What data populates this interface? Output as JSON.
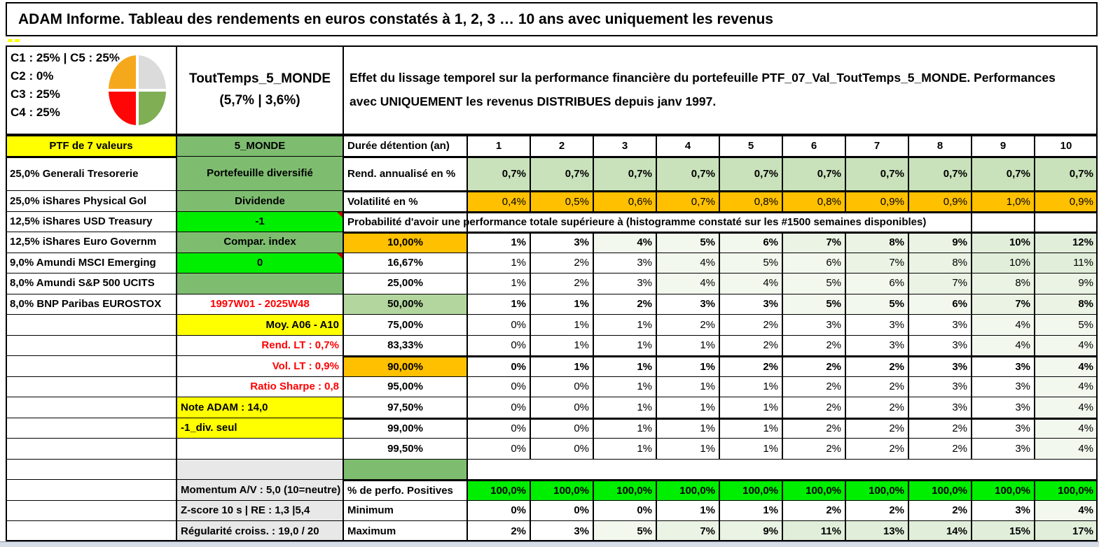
{
  "title": "ADAM Informe. Tableau des rendements en euros constatés à 1, 2, 3 … 10 ans avec uniquement les revenus",
  "description": "Effet du lissage temporel sur la performance financière du portefeuille PTF_07_Val_ToutTemps_5_MONDE. Performances avec UNIQUEMENT les revenus DISTRIBUES depuis janv 1997.",
  "portfolio_name": {
    "line1": "ToutTemps_5_MONDE",
    "line2": "(5,7% | 3,6%)"
  },
  "allocation": {
    "lines": [
      "C1 : 25% | C5 : 25%",
      "C2 : 0%",
      "C3 : 25%",
      "C4 : 25%"
    ]
  },
  "chart_data": {
    "type": "pie",
    "title": "Répartition du portefeuille C1-C5",
    "labels": [
      "C1",
      "C2",
      "C3",
      "C4",
      "C5"
    ],
    "values": [
      25,
      0,
      25,
      25,
      25
    ],
    "quadrant_colors": {
      "top_left": "#F6A81C",
      "top_right": "#DBDBDB",
      "bottom_left": "#FF0606",
      "bottom_right": "#7FAE54"
    }
  },
  "left_column": {
    "header": "PTF de 7 valeurs",
    "holdings": [
      "25,0% Generali Tresorerie",
      "25,0% iShares Physical Gol",
      "12,5% iShares USD Treasury",
      "12,5% iShares Euro Governm",
      "9,0% Amundi MSCI Emerging",
      "8,0% Amundi S&P 500 UCITS",
      "8,0% BNP Paribas EUROSTOX"
    ]
  },
  "middle_column": {
    "rows": [
      {
        "text": "5_MONDE",
        "bg": "green",
        "align": "center"
      },
      {
        "text": "Portefeuille diversifié",
        "bg": "green",
        "align": "center"
      },
      {
        "text": "Dividende",
        "bg": "green",
        "align": "center"
      },
      {
        "text": "-1",
        "bg": "bright_green",
        "align": "center",
        "marker": true
      },
      {
        "text": "Compar. index",
        "bg": "green",
        "align": "center"
      },
      {
        "text": "0",
        "bg": "bright_green",
        "align": "center",
        "marker": true
      },
      {
        "text": "",
        "bg": "green"
      },
      {
        "text": "1997W01 - 2025W48",
        "bg": "white",
        "color": "red",
        "align": "center"
      },
      {
        "text": "Moy. A06 - A10",
        "bg": "yellow",
        "align": "right"
      },
      {
        "text": "Rend. LT : 0,7%",
        "bg": "white",
        "color": "red",
        "align": "right"
      },
      {
        "text": "Vol. LT : 0,9%",
        "bg": "white",
        "color": "red",
        "align": "right"
      },
      {
        "text": "Ratio Sharpe : 0,8",
        "bg": "white",
        "color": "red",
        "align": "right"
      },
      {
        "text": "Note ADAM : 14,0",
        "bg": "yellow",
        "align": "left"
      },
      {
        "text": "-1_div. seul",
        "bg": "yellow",
        "align": "left"
      },
      {
        "text": "",
        "bg": "white"
      },
      {
        "text": "",
        "bg": "gray"
      },
      {
        "text": "Momentum A/V : 5,0 (10=neutre)",
        "bg": "gray",
        "align": "left"
      },
      {
        "text": "Z-score 10 s | RE : 1,3 |5,4",
        "bg": "gray",
        "align": "left"
      },
      {
        "text": "Régularité croiss. : 19,0 / 20",
        "bg": "gray",
        "align": "left"
      }
    ]
  },
  "grid": {
    "duree_label": "Durée détention (an)",
    "durations": [
      "1",
      "2",
      "3",
      "4",
      "5",
      "6",
      "7",
      "8",
      "9",
      "10"
    ],
    "rows": [
      {
        "label": "Rend. annualisé en %",
        "cell_bg": "light_green",
        "bold_values": true,
        "values": [
          "0,7%",
          "0,7%",
          "0,7%",
          "0,7%",
          "0,7%",
          "0,7%",
          "0,7%",
          "0,7%",
          "0,7%",
          "0,7%"
        ]
      },
      {
        "label": "Volatilité en %",
        "cell_bg": "orange",
        "bold_values": false,
        "values": [
          "0,4%",
          "0,5%",
          "0,6%",
          "0,7%",
          "0,8%",
          "0,8%",
          "0,9%",
          "0,9%",
          "1,0%",
          "0,9%"
        ]
      }
    ],
    "prob_header": "Probabilité d'avoir une performance totale supérieure à (histogramme constaté sur les #1500 semaines disponibles)",
    "prob_rows": [
      {
        "label": "10,00%",
        "label_bg": "orange",
        "bold": true,
        "values": [
          "1%",
          "3%",
          "4%",
          "5%",
          "6%",
          "7%",
          "8%",
          "9%",
          "10%",
          "12%"
        ]
      },
      {
        "label": "16,67%",
        "values": [
          "1%",
          "2%",
          "3%",
          "4%",
          "5%",
          "6%",
          "7%",
          "8%",
          "10%",
          "11%"
        ]
      },
      {
        "label": "25,00%",
        "values": [
          "1%",
          "2%",
          "3%",
          "4%",
          "4%",
          "5%",
          "6%",
          "7%",
          "8%",
          "9%"
        ]
      },
      {
        "label": "50,00%",
        "label_bg": "mid_green",
        "bold": true,
        "values": [
          "1%",
          "1%",
          "2%",
          "3%",
          "3%",
          "5%",
          "5%",
          "6%",
          "7%",
          "8%"
        ]
      },
      {
        "label": "75,00%",
        "values": [
          "0%",
          "1%",
          "1%",
          "2%",
          "2%",
          "3%",
          "3%",
          "3%",
          "4%",
          "5%"
        ]
      },
      {
        "label": "83,33%",
        "values": [
          "0%",
          "1%",
          "1%",
          "1%",
          "2%",
          "2%",
          "3%",
          "3%",
          "4%",
          "4%"
        ]
      },
      {
        "label": "90,00%",
        "label_bg": "orange",
        "bold": true,
        "thick_top": true,
        "values": [
          "0%",
          "1%",
          "1%",
          "1%",
          "2%",
          "2%",
          "2%",
          "3%",
          "3%",
          "4%"
        ]
      },
      {
        "label": "95,00%",
        "values": [
          "0%",
          "0%",
          "1%",
          "1%",
          "1%",
          "2%",
          "2%",
          "3%",
          "3%",
          "4%"
        ]
      },
      {
        "label": "97,50%",
        "values": [
          "0%",
          "0%",
          "1%",
          "1%",
          "1%",
          "2%",
          "2%",
          "3%",
          "3%",
          "4%"
        ]
      },
      {
        "label": "99,00%",
        "thick_top": true,
        "values": [
          "0%",
          "0%",
          "1%",
          "1%",
          "1%",
          "2%",
          "2%",
          "2%",
          "3%",
          "4%"
        ]
      },
      {
        "label": "99,50%",
        "values": [
          "0%",
          "0%",
          "1%",
          "1%",
          "1%",
          "2%",
          "2%",
          "2%",
          "3%",
          "4%"
        ]
      }
    ],
    "summary_rows": [
      {
        "label": "% de perfo. Positives",
        "cell_bg": "bright_green",
        "bold": true,
        "thick_top": true,
        "values": [
          "100,0%",
          "100,0%",
          "100,0%",
          "100,0%",
          "100,0%",
          "100,0%",
          "100,0%",
          "100,0%",
          "100,0%",
          "100,0%"
        ]
      },
      {
        "label": "Minimum",
        "bold": true,
        "values": [
          "0%",
          "0%",
          "0%",
          "1%",
          "1%",
          "2%",
          "2%",
          "2%",
          "3%",
          "4%"
        ]
      },
      {
        "label": "Maximum",
        "bold": true,
        "values": [
          "2%",
          "3%",
          "5%",
          "7%",
          "9%",
          "11%",
          "13%",
          "14%",
          "15%",
          "17%"
        ]
      }
    ]
  },
  "palette": {
    "green": "#7EBD70",
    "light_green": "#C9E2BB",
    "mid_green": "#B3D69E",
    "bright_green": "#00EE00",
    "orange": "#FFC000",
    "yellow": "#FFFF00",
    "white": "#FFFFFF",
    "gray": "#E9E8E8",
    "red_text": "#FF0000",
    "marker_red": "#C00000",
    "tints": [
      "#FFFFFF",
      "#F2F8EE",
      "#EAF3E4",
      "#E1EEDA"
    ],
    "bottom_strip": "#D7DDE7"
  }
}
